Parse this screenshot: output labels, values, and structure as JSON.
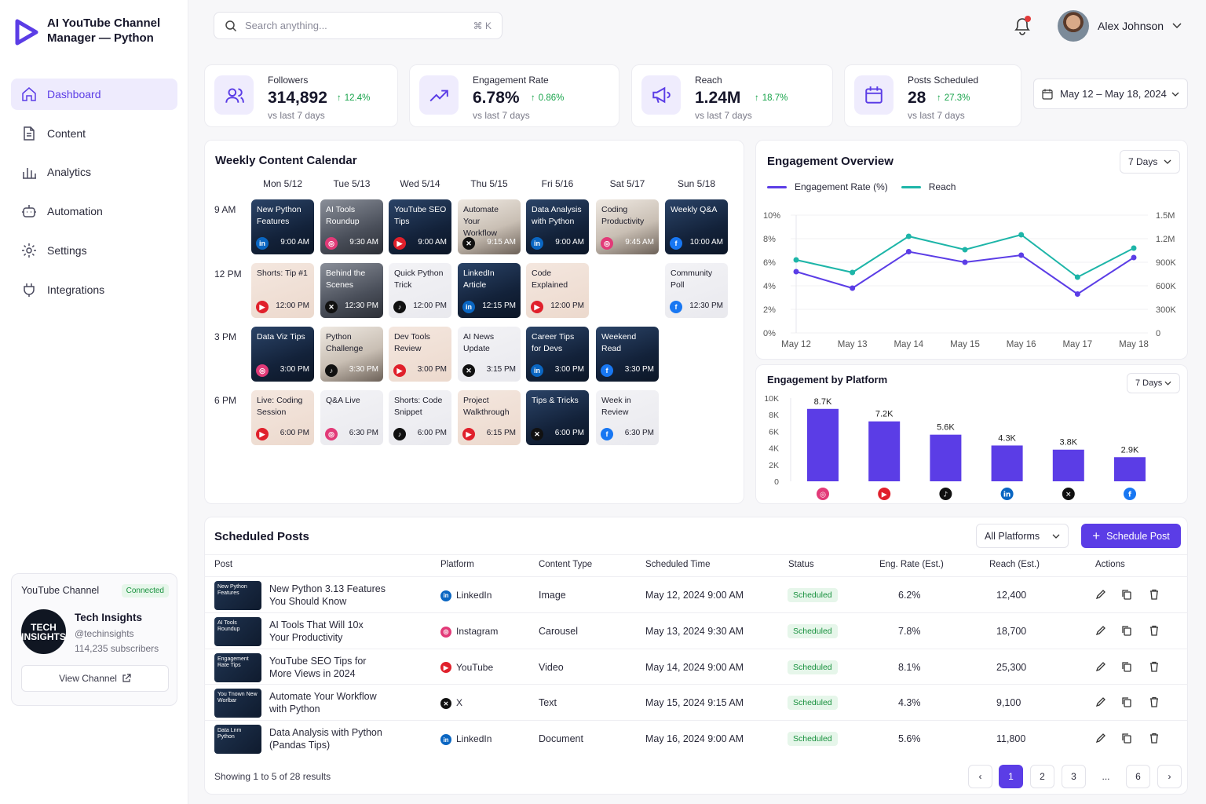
{
  "app": {
    "title": "AI YouTube Channel Manager — Python"
  },
  "sidebar": {
    "items": [
      {
        "label": "Dashboard",
        "icon": "home-icon",
        "active": true
      },
      {
        "label": "Content",
        "icon": "document-icon"
      },
      {
        "label": "Analytics",
        "icon": "bar-chart-icon"
      },
      {
        "label": "Automation",
        "icon": "robot-icon"
      },
      {
        "label": "Settings",
        "icon": "gear-icon"
      },
      {
        "label": "Integrations",
        "icon": "plug-icon"
      }
    ],
    "channel": {
      "heading": "YouTube Channel",
      "status": "Connected",
      "avatar_text": "TECH INSIGHTS",
      "name": "Tech Insights",
      "handle": "@techinsights",
      "subscribers": "114,235 subscribers",
      "button": "View Channel"
    }
  },
  "topbar": {
    "search_placeholder": "Search anything...",
    "shortcut": "⌘ K",
    "user_name": "Alex Johnson"
  },
  "stats": [
    {
      "label": "Followers",
      "value": "314,892",
      "delta": "12.4%",
      "sub": "vs last 7 days",
      "icon": "users-icon"
    },
    {
      "label": "Engagement Rate",
      "value": "6.78%",
      "delta": "0.86%",
      "sub": "vs last 7 days",
      "icon": "trend-up-icon"
    },
    {
      "label": "Reach",
      "value": "1.24M",
      "delta": "18.7%",
      "sub": "vs last 7 days",
      "icon": "megaphone-icon"
    },
    {
      "label": "Posts Scheduled",
      "value": "28",
      "delta": "27.3%",
      "sub": "vs last 7 days",
      "icon": "calendar-icon"
    }
  ],
  "date_range": "May 12 – May 18, 2024",
  "calendar": {
    "title": "Weekly Content Calendar",
    "days": [
      "Mon 5/12",
      "Tue 5/13",
      "Wed 5/14",
      "Thu 5/15",
      "Fri 5/16",
      "Sat 5/17",
      "Sun 5/18"
    ],
    "times": [
      "9 AM",
      "12 PM",
      "3 PM",
      "6 PM"
    ],
    "slots": [
      [
        {
          "title": "New Python Features",
          "platform": "L",
          "time": "9:00 AM",
          "style": "dark"
        },
        {
          "title": "AI Tools Roundup",
          "platform": "I",
          "time": "9:30 AM",
          "style": "photo"
        },
        {
          "title": "YouTube SEO Tips",
          "platform": "Y",
          "time": "9:00 AM",
          "style": "dark"
        },
        {
          "title": "Automate Your Workflow",
          "platform": "X",
          "time": "9:15 AM",
          "style": "photo-light"
        },
        {
          "title": "Data Analysis with Python",
          "platform": "L",
          "time": "9:00 AM",
          "style": "dark"
        },
        {
          "title": "Coding Productivity",
          "platform": "I",
          "time": "9:45 AM",
          "style": "photo-light"
        },
        {
          "title": "Weekly Q&A",
          "platform": "F",
          "time": "10:00 AM",
          "style": "dark"
        }
      ],
      [
        {
          "title": "Shorts: Tip #1",
          "platform": "Y",
          "time": "12:00 PM",
          "style": "warm"
        },
        {
          "title": "Behind the Scenes",
          "platform": "X",
          "time": "12:30 PM",
          "style": "photo"
        },
        {
          "title": "Quick Python Trick",
          "platform": "T",
          "time": "12:00 PM",
          "style": "light"
        },
        {
          "title": "LinkedIn Article",
          "platform": "L",
          "time": "12:15 PM",
          "style": "dark"
        },
        {
          "title": "Code Explained",
          "platform": "Y",
          "time": "12:00 PM",
          "style": "warm"
        },
        null,
        {
          "title": "Community Poll",
          "platform": "F",
          "time": "12:30 PM",
          "style": "light"
        }
      ],
      [
        {
          "title": "Data Viz Tips",
          "platform": "I",
          "time": "3:00 PM",
          "style": "dark"
        },
        {
          "title": "Python Challenge",
          "platform": "T",
          "time": "3:30 PM",
          "style": "photo-light"
        },
        {
          "title": "Dev Tools Review",
          "platform": "Y",
          "time": "3:00 PM",
          "style": "warm"
        },
        {
          "title": "AI News Update",
          "platform": "X",
          "time": "3:15 PM",
          "style": "light"
        },
        {
          "title": "Career Tips for Devs",
          "platform": "L",
          "time": "3:00 PM",
          "style": "dark"
        },
        {
          "title": "Weekend Read",
          "platform": "F",
          "time": "3:30 PM",
          "style": "dark"
        },
        null
      ],
      [
        {
          "title": "Live: Coding Session",
          "platform": "Y",
          "time": "6:00 PM",
          "style": "warm"
        },
        {
          "title": "Q&A Live",
          "platform": "I",
          "time": "6:30 PM",
          "style": "light"
        },
        {
          "title": "Shorts: Code Snippet",
          "platform": "T",
          "time": "6:00 PM",
          "style": "light"
        },
        {
          "title": "Project Walkthrough",
          "platform": "Y",
          "time": "6:15 PM",
          "style": "warm"
        },
        {
          "title": "Tips & Tricks",
          "platform": "X",
          "time": "6:00 PM",
          "style": "dark"
        },
        {
          "title": "Week in Review",
          "platform": "F",
          "time": "6:30 PM",
          "style": "light"
        },
        null
      ]
    ]
  },
  "engagement_overview": {
    "title": "Engagement Overview",
    "range": "7 Days",
    "chart_data": {
      "type": "line",
      "x": [
        "May 12",
        "May 13",
        "May 14",
        "May 15",
        "May 16",
        "May 17",
        "May 18"
      ],
      "series": [
        {
          "name": "Engagement Rate (%)",
          "axis": "left",
          "color": "#5b3de6",
          "values": [
            5.2,
            3.8,
            6.9,
            6.0,
            6.6,
            3.3,
            6.4
          ]
        },
        {
          "name": "Reach",
          "axis": "right",
          "color": "#1db5a8",
          "values": [
            930000,
            770000,
            1230000,
            1060000,
            1250000,
            710000,
            1080000
          ]
        }
      ],
      "left_ticks": [
        "0%",
        "2%",
        "4%",
        "6%",
        "8%",
        "10%"
      ],
      "right_ticks": [
        "0",
        "300K",
        "600K",
        "900K",
        "1.2M",
        "1.5M"
      ],
      "ylim_left": [
        0,
        10
      ],
      "ylim_right": [
        0,
        1500000
      ],
      "grid": true,
      "legend": "top-left"
    }
  },
  "platform_chart": {
    "title": "Engagement by Platform",
    "range": "7 Days",
    "chart_data": {
      "type": "bar",
      "categories": [
        "Instagram",
        "YouTube",
        "TikTok",
        "LinkedIn",
        "X",
        "Facebook"
      ],
      "values": [
        8700,
        7200,
        5600,
        4300,
        3800,
        2900
      ],
      "labels": [
        "8.7K",
        "7.2K",
        "5.6K",
        "4.3K",
        "3.8K",
        "2.9K"
      ],
      "ticks": [
        "0",
        "2K",
        "4K",
        "6K",
        "8K",
        "10K"
      ],
      "ylim": [
        0,
        10000
      ],
      "color": "#5b3de6"
    }
  },
  "scheduled": {
    "title": "Scheduled Posts",
    "filter": "All Platforms",
    "button": "Schedule Post",
    "columns": [
      "Post",
      "Platform",
      "Content Type",
      "Scheduled Time",
      "Status",
      "Eng. Rate (Est.)",
      "Reach (Est.)",
      "Actions"
    ],
    "rows": [
      {
        "title1": "New Python 3.13 Features",
        "title2": "You Should Know",
        "thumb": "New Python Features",
        "platform": "LinkedIn",
        "pcode": "L",
        "type": "Image",
        "time": "May 12, 2024 9:00 AM",
        "status": "Scheduled",
        "eng": "6.2%",
        "reach": "12,400"
      },
      {
        "title1": "AI Tools That Will 10x",
        "title2": "Your Productivity",
        "thumb": "AI Tools Roundup",
        "platform": "Instagram",
        "pcode": "I",
        "type": "Carousel",
        "time": "May 13, 2024 9:30 AM",
        "status": "Scheduled",
        "eng": "7.8%",
        "reach": "18,700"
      },
      {
        "title1": "YouTube SEO Tips for",
        "title2": "More Views in 2024",
        "thumb": "Engagement Rate Tips",
        "platform": "YouTube",
        "pcode": "Y",
        "type": "Video",
        "time": "May 14, 2024 9:00 AM",
        "status": "Scheduled",
        "eng": "8.1%",
        "reach": "25,300"
      },
      {
        "title1": "Automate Your Workflow",
        "title2": "with Python",
        "thumb": "You Tnown New Worlbar",
        "platform": "X",
        "pcode": "X",
        "type": "Text",
        "time": "May 15, 2024 9:15 AM",
        "status": "Scheduled",
        "eng": "4.3%",
        "reach": "9,100"
      },
      {
        "title1": "Data Analysis with Python",
        "title2": "(Pandas Tips)",
        "thumb": "Data Lnm Python",
        "platform": "LinkedIn",
        "pcode": "L",
        "type": "Document",
        "time": "May 16, 2024 9:00 AM",
        "status": "Scheduled",
        "eng": "5.6%",
        "reach": "11,800"
      }
    ],
    "footer": "Showing 1 to 5 of 28 results",
    "pages": [
      "1",
      "2",
      "3",
      "...",
      "6"
    ]
  },
  "colors": {
    "accent": "#5b3de6",
    "teal": "#1db5a8",
    "positive": "#17a34a",
    "youtube": "#e0202b",
    "instagram": "#e23a78",
    "linkedin": "#0a66c2",
    "facebook": "#1877f2",
    "x": "#111111",
    "tiktok": "#111111"
  }
}
